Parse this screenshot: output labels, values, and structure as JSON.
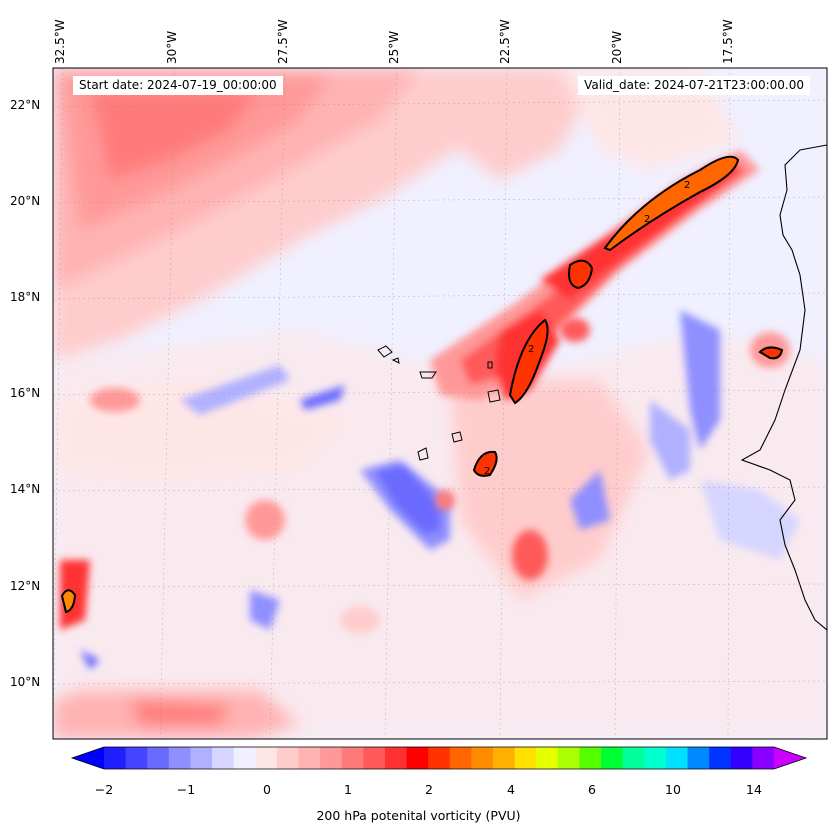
{
  "header": {
    "start_date": "Start date: 2024-07-19_00:00:00",
    "valid_date": "Valid_date: 2024-07-21T23:00:00.00"
  },
  "longitudes": [
    "32.5°W",
    "30°W",
    "27.5°W",
    "25°W",
    "22.5°W",
    "20°W",
    "17.5°W"
  ],
  "latitudes": [
    "22°N",
    "20°N",
    "18°N",
    "16°N",
    "14°N",
    "12°N",
    "10°N"
  ],
  "colorbar": {
    "label": "200 hPa potenital vorticity (PVU)",
    "ticks": [
      "−2",
      "−1",
      "0",
      "1",
      "2",
      "4",
      "6",
      "10",
      "14"
    ],
    "colors": [
      "#0000ff",
      "#2020ff",
      "#4545ff",
      "#6a6aff",
      "#8f8fff",
      "#b0b0ff",
      "#d5d5ff",
      "#f0f0ff",
      "#ffe6e6",
      "#ffcccc",
      "#ffb3b3",
      "#ff9999",
      "#ff7a7a",
      "#ff5a5a",
      "#ff3030",
      "#ff0000",
      "#ff3300",
      "#ff6600",
      "#ff8c00",
      "#ffb000",
      "#ffe000",
      "#e6ff00",
      "#aaff00",
      "#55ff00",
      "#00ff33",
      "#00ff99",
      "#00ffcc",
      "#00e0ff",
      "#0088ff",
      "#0033ff",
      "#3300ff",
      "#8800ff",
      "#cc00ff"
    ]
  },
  "contour_label": "2"
}
